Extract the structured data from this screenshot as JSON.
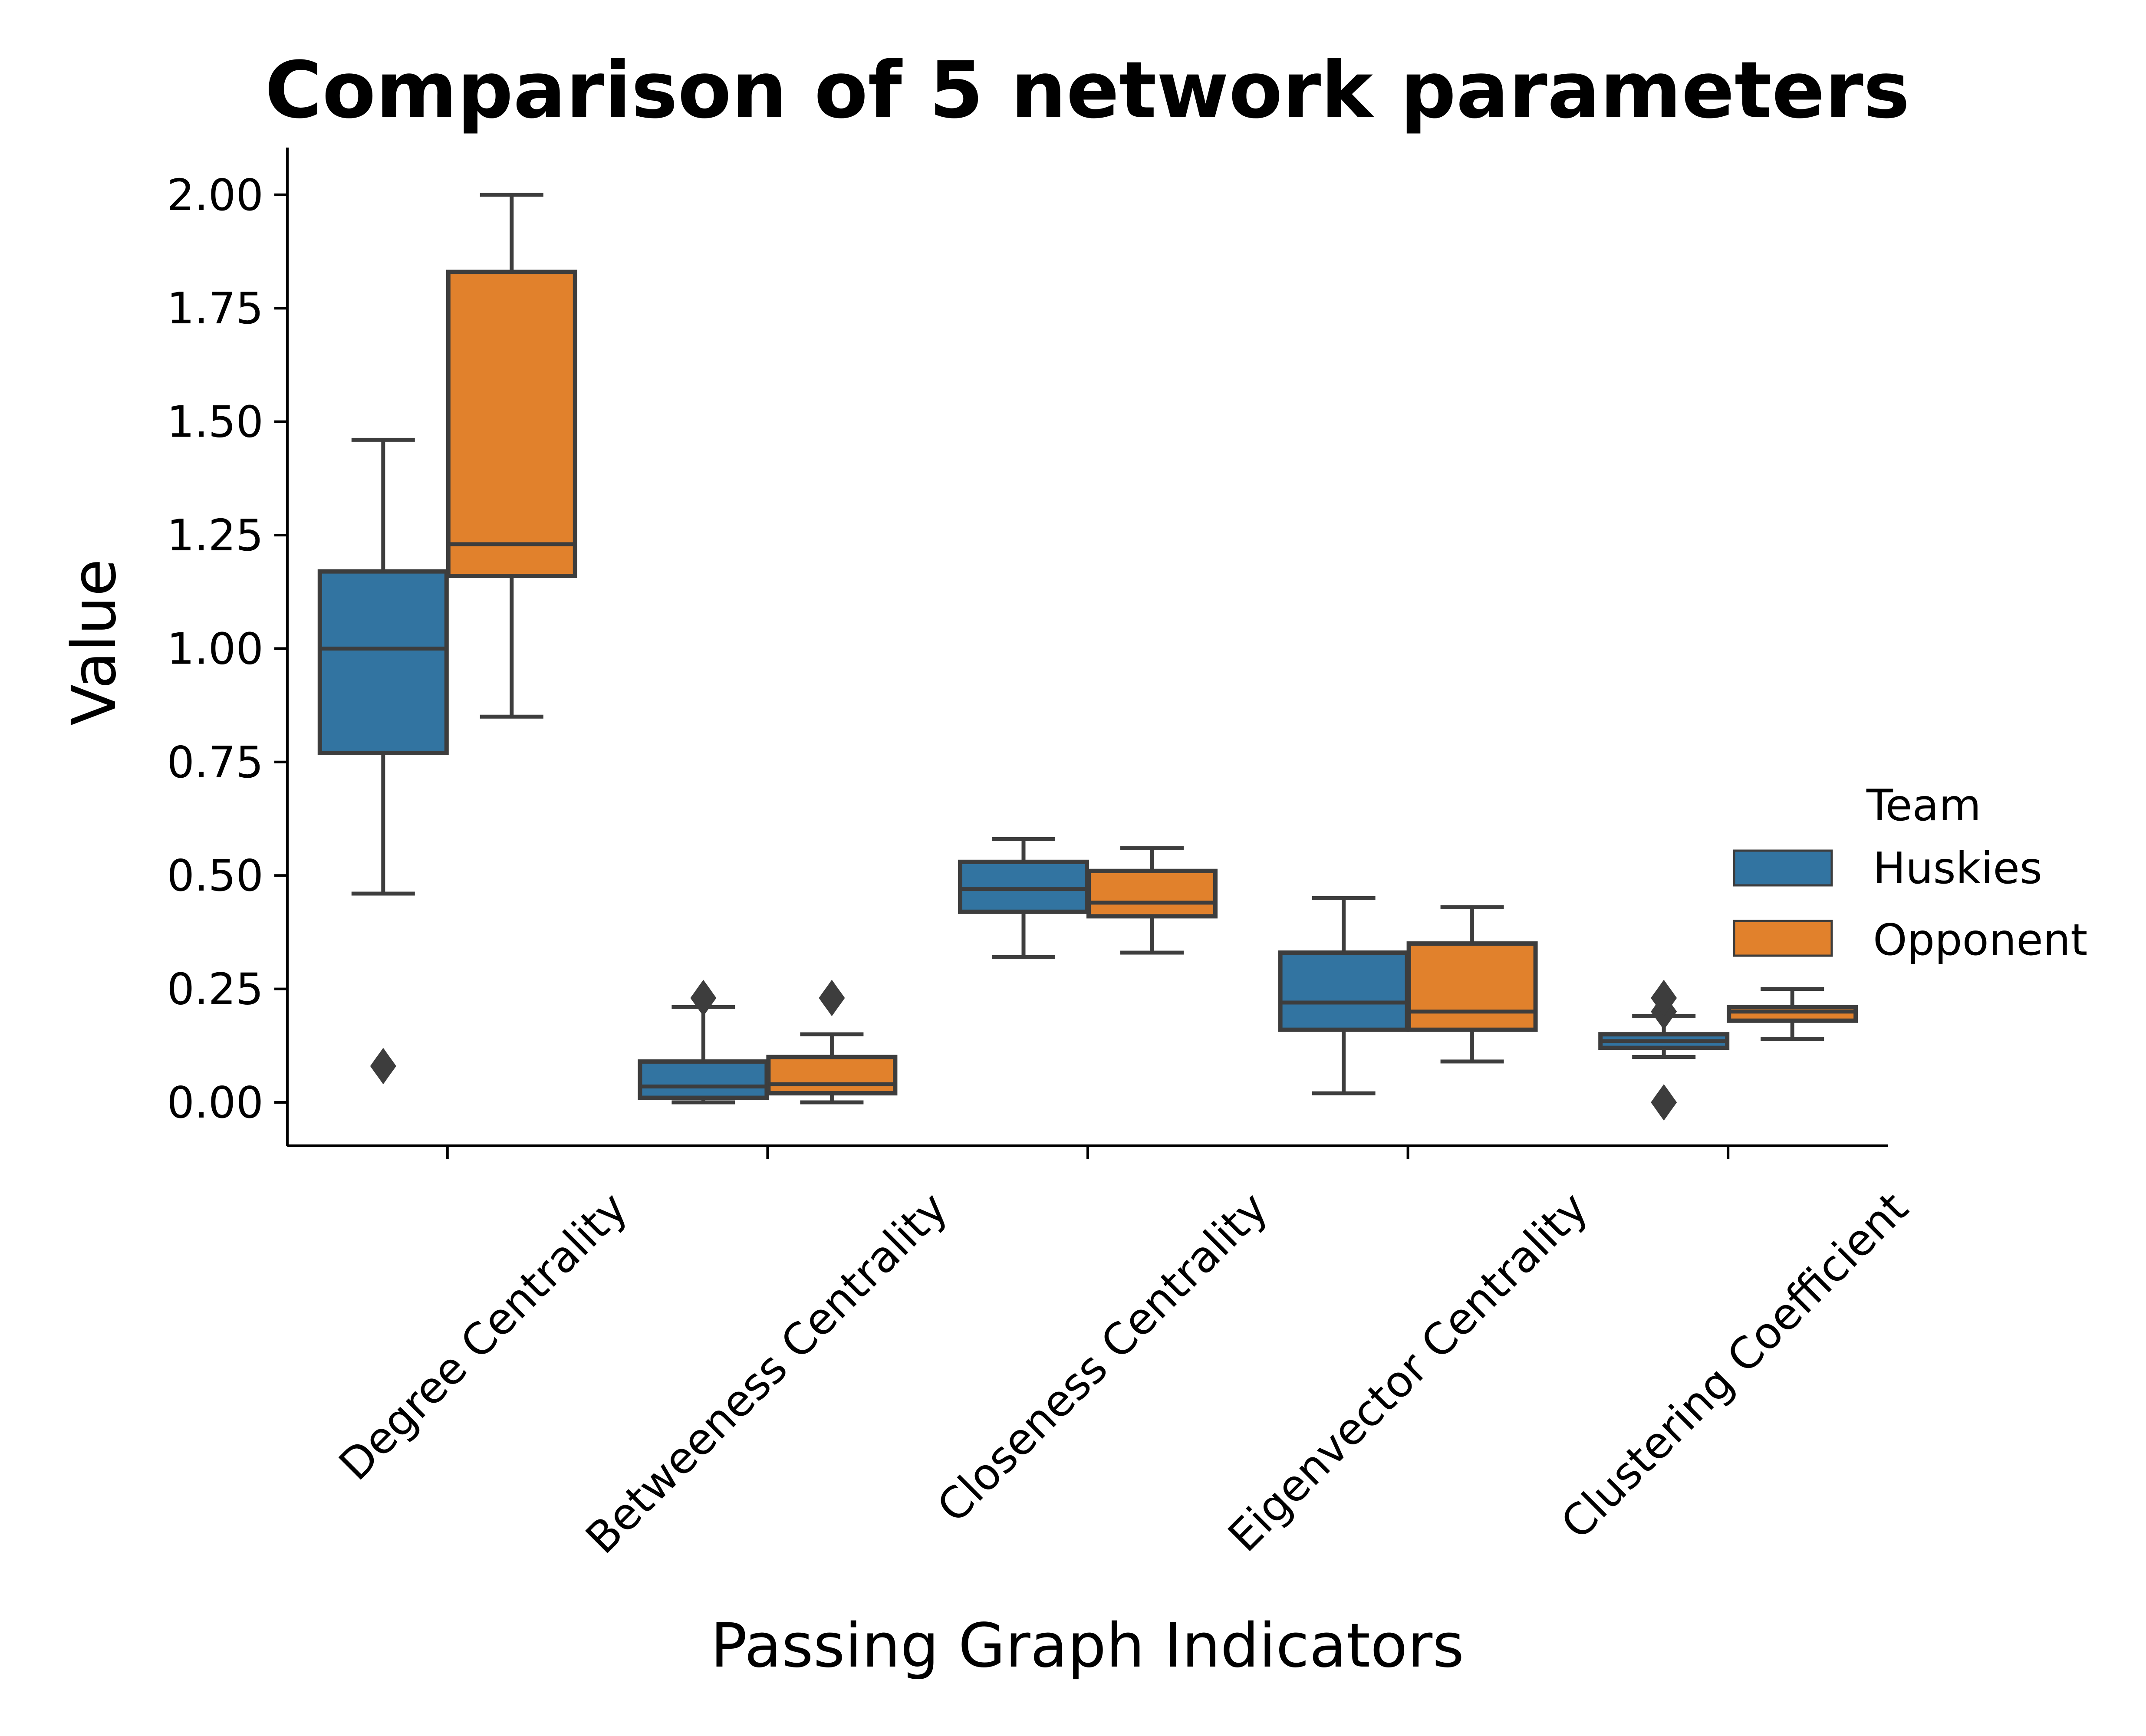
{
  "chart_data": {
    "type": "box",
    "title": "Comparison of 5 network parameters",
    "xlabel": "Passing Graph Indicators",
    "ylabel": "Value",
    "ylim": [
      -0.1,
      2.1
    ],
    "yticks": [
      "0.00",
      "0.25",
      "0.50",
      "0.75",
      "1.00",
      "1.25",
      "1.50",
      "1.75",
      "2.00"
    ],
    "ytick_values": [
      0,
      0.25,
      0.5,
      0.75,
      1.0,
      1.25,
      1.5,
      1.75,
      2.0
    ],
    "categories": [
      "Degree Centrality",
      "Betweeness Centrality",
      "Closeness Centrality",
      "Eigenvector Centrality",
      "Clustering Coefficient"
    ],
    "legend": {
      "title": "Team",
      "position": "center-right"
    },
    "series": [
      {
        "name": "Huskies",
        "color": "#3274a1",
        "boxes": [
          {
            "whislo": 0.46,
            "q1": 0.77,
            "med": 1.0,
            "q3": 1.17,
            "whishi": 1.46,
            "fliers": [
              0.08
            ]
          },
          {
            "whislo": 0.0,
            "q1": 0.01,
            "med": 0.035,
            "q3": 0.09,
            "whishi": 0.21,
            "fliers": [
              0.23
            ]
          },
          {
            "whislo": 0.32,
            "q1": 0.42,
            "med": 0.47,
            "q3": 0.53,
            "whishi": 0.58,
            "fliers": []
          },
          {
            "whislo": 0.02,
            "q1": 0.16,
            "med": 0.22,
            "q3": 0.33,
            "whishi": 0.45,
            "fliers": []
          },
          {
            "whislo": 0.1,
            "q1": 0.12,
            "med": 0.135,
            "q3": 0.15,
            "whishi": 0.19,
            "fliers": [
              0.0,
              0.2,
              0.23
            ]
          }
        ]
      },
      {
        "name": "Opponent",
        "color": "#e1812c",
        "boxes": [
          {
            "whislo": 0.85,
            "q1": 1.16,
            "med": 1.23,
            "q3": 1.83,
            "whishi": 2.0,
            "fliers": []
          },
          {
            "whislo": 0.0,
            "q1": 0.02,
            "med": 0.04,
            "q3": 0.1,
            "whishi": 0.15,
            "fliers": [
              0.23
            ]
          },
          {
            "whislo": 0.33,
            "q1": 0.41,
            "med": 0.44,
            "q3": 0.51,
            "whishi": 0.56,
            "fliers": []
          },
          {
            "whislo": 0.09,
            "q1": 0.16,
            "med": 0.2,
            "q3": 0.35,
            "whishi": 0.43,
            "fliers": []
          },
          {
            "whislo": 0.14,
            "q1": 0.18,
            "med": 0.2,
            "q3": 0.21,
            "whishi": 0.25,
            "fliers": []
          }
        ]
      }
    ]
  }
}
